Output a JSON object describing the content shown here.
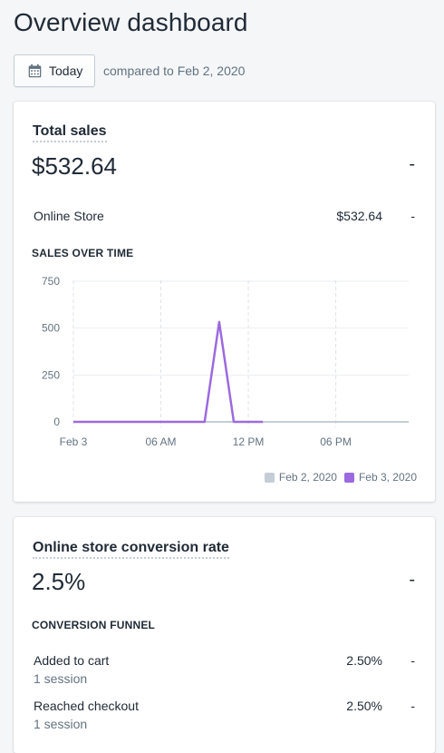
{
  "page": {
    "title": "Overview dashboard"
  },
  "date_bar": {
    "button_label": "Today",
    "calendar_icon": "calendar-icon",
    "compared_text": "compared to Feb 2, 2020"
  },
  "total_sales": {
    "heading": "Total sales",
    "value": "$532.64",
    "change": "-",
    "channels": [
      {
        "label": "Online Store",
        "value": "$532.64",
        "change": "-"
      }
    ],
    "chart_caption": "SALES OVER TIME"
  },
  "chart_data": {
    "type": "line",
    "title": "SALES OVER TIME",
    "x_tick_labels": [
      "Feb 3",
      "06 AM",
      "12 PM",
      "06 PM"
    ],
    "y_tick_labels": [
      "0",
      "250",
      "500",
      "750"
    ],
    "ylim": [
      0,
      750
    ],
    "xlim_hours": [
      0,
      23
    ],
    "grid": true,
    "legend_position": "bottom-right",
    "series": [
      {
        "name": "Feb 2, 2020",
        "color": "#c4cdd5",
        "x_hours": [
          0,
          23
        ],
        "values": [
          0,
          0
        ]
      },
      {
        "name": "Feb 3, 2020",
        "color": "#9c6ade",
        "x_hours": [
          0,
          1,
          2,
          3,
          4,
          5,
          6,
          7,
          8,
          9,
          10,
          11,
          12,
          13
        ],
        "values": [
          0,
          0,
          0,
          0,
          0,
          0,
          0,
          0,
          0,
          0,
          532.64,
          0,
          0,
          0
        ]
      }
    ]
  },
  "conversion": {
    "heading": "Online store conversion rate",
    "value": "2.5%",
    "change": "-",
    "funnel_caption": "CONVERSION FUNNEL",
    "funnel": [
      {
        "label": "Added to cart",
        "sessions": "1 session",
        "rate": "2.50%",
        "change": "-"
      },
      {
        "label": "Reached checkout",
        "sessions": "1 session",
        "rate": "2.50%",
        "change": "-"
      }
    ]
  },
  "watermark": "",
  "colors": {
    "background": "#f4f6f8",
    "text": "#212b36",
    "muted": "#637381",
    "series_current": "#9c6ade",
    "series_previous": "#c4cdd5"
  }
}
